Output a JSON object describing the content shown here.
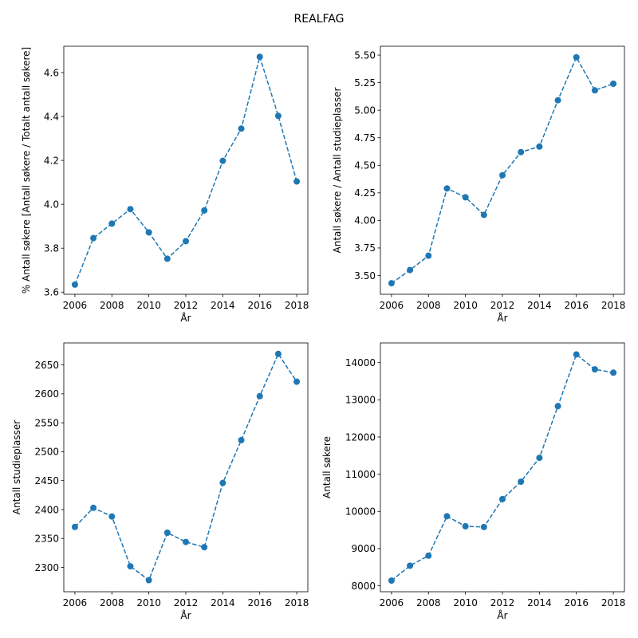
{
  "figure": {
    "title": "REALFAG"
  },
  "chart_data": [
    {
      "type": "line",
      "title": "",
      "xlabel": "År",
      "ylabel": "% Antall søkere [Antall søkere / Totalt antall søkere]",
      "x": [
        2006,
        2007,
        2008,
        2009,
        2010,
        2011,
        2012,
        2013,
        2014,
        2015,
        2016,
        2017,
        2018
      ],
      "series": [
        {
          "values": [
            3.634,
            3.846,
            3.912,
            3.978,
            3.872,
            3.752,
            3.832,
            3.972,
            4.198,
            4.345,
            4.672,
            4.403,
            4.104
          ]
        }
      ],
      "xlim": [
        2005.4,
        2018.6
      ],
      "ylim": [
        3.59,
        4.72
      ],
      "xticks": [
        2006,
        2008,
        2010,
        2012,
        2014,
        2016,
        2018
      ],
      "yticks": [
        "3.6",
        "3.8",
        "4.0",
        "4.2",
        "4.4",
        "4.6"
      ],
      "line_style": "dashed",
      "marker": "circle",
      "color": "#1f77b4",
      "grid": false
    },
    {
      "type": "line",
      "title": "",
      "xlabel": "År",
      "ylabel": "Antall søkere / Antall studieplasser",
      "x": [
        2006,
        2007,
        2008,
        2009,
        2010,
        2011,
        2012,
        2013,
        2014,
        2015,
        2016,
        2017,
        2018
      ],
      "series": [
        {
          "values": [
            3.43,
            3.55,
            3.68,
            4.29,
            4.21,
            4.05,
            4.41,
            4.62,
            4.67,
            5.09,
            5.48,
            5.18,
            5.24
          ]
        }
      ],
      "xlim": [
        2005.4,
        2018.6
      ],
      "ylim": [
        3.33,
        5.58
      ],
      "xticks": [
        2006,
        2008,
        2010,
        2012,
        2014,
        2016,
        2018
      ],
      "yticks": [
        "3.50",
        "3.75",
        "4.00",
        "4.25",
        "4.50",
        "4.75",
        "5.00",
        "5.25",
        "5.50"
      ],
      "line_style": "dashed",
      "marker": "circle",
      "color": "#1f77b4",
      "grid": false
    },
    {
      "type": "line",
      "title": "",
      "xlabel": "År",
      "ylabel": "Antall studieplasser",
      "x": [
        2006,
        2007,
        2008,
        2009,
        2010,
        2011,
        2012,
        2013,
        2014,
        2015,
        2016,
        2017,
        2018
      ],
      "series": [
        {
          "values": [
            2370,
            2403,
            2388,
            2302,
            2278,
            2360,
            2344,
            2335,
            2446,
            2520,
            2596,
            2669,
            2621
          ]
        }
      ],
      "xlim": [
        2005.4,
        2018.6
      ],
      "ylim": [
        2258,
        2688
      ],
      "xticks": [
        2006,
        2008,
        2010,
        2012,
        2014,
        2016,
        2018
      ],
      "yticks": [
        "2300",
        "2350",
        "2400",
        "2450",
        "2500",
        "2550",
        "2600",
        "2650"
      ],
      "line_style": "dashed",
      "marker": "circle",
      "color": "#1f77b4",
      "grid": false
    },
    {
      "type": "line",
      "title": "",
      "xlabel": "År",
      "ylabel": "Antall søkere",
      "x": [
        2006,
        2007,
        2008,
        2009,
        2010,
        2011,
        2012,
        2013,
        2014,
        2015,
        2016,
        2017,
        2018
      ],
      "series": [
        {
          "values": [
            8140,
            8540,
            8810,
            9870,
            9600,
            9580,
            10330,
            10800,
            11440,
            12830,
            14220,
            13820,
            13730
          ]
        }
      ],
      "xlim": [
        2005.4,
        2018.6
      ],
      "ylim": [
        7840,
        14530
      ],
      "xticks": [
        2006,
        2008,
        2010,
        2012,
        2014,
        2016,
        2018
      ],
      "yticks": [
        "8000",
        "9000",
        "10000",
        "11000",
        "12000",
        "13000",
        "14000"
      ],
      "line_style": "dashed",
      "marker": "circle",
      "color": "#1f77b4",
      "grid": false
    }
  ]
}
